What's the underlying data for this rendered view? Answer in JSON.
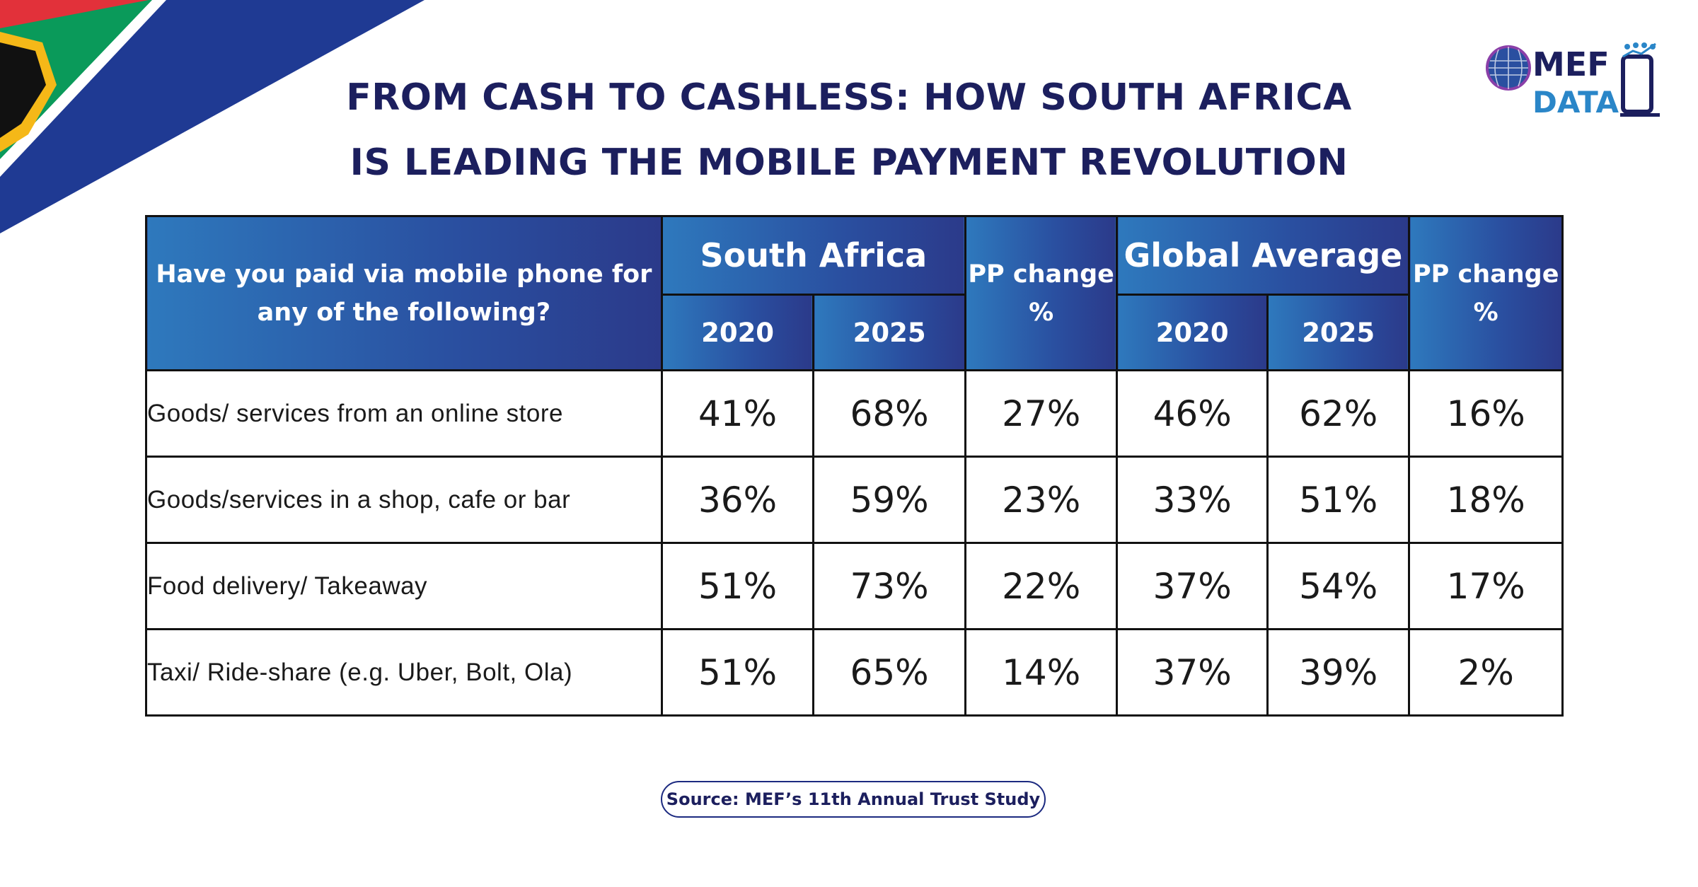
{
  "header": {
    "title_line1": "FROM CASH TO CASHLESS: HOW SOUTH AFRICA",
    "title_line2": "IS LEADING THE MOBILE PAYMENT REVOLUTION"
  },
  "logo": {
    "word_top": "MEF",
    "word_bottom": "DATA",
    "icon": "globe-phone-logo"
  },
  "colors": {
    "navy": "#1c1f5e",
    "header_blue": "#2e79bd",
    "header_indigo": "#2b3a8a",
    "flag_green": "#0a9a5a",
    "flag_blue": "#1f3a93",
    "flag_red": "#e2313a",
    "flag_gold": "#f5b818"
  },
  "table": {
    "question": "Have you paid via mobile phone for any of the following?",
    "groups": {
      "south_africa": "South Africa",
      "global": "Global Average"
    },
    "pp_label": "PP change %",
    "years": {
      "y1": "2020",
      "y2": "2025"
    },
    "rows": [
      {
        "label": "Goods/ services from an online store",
        "sa_2020": "41%",
        "sa_2025": "68%",
        "sa_pp": "27%",
        "gl_2020": "46%",
        "gl_2025": "62%",
        "gl_pp": "16%"
      },
      {
        "label": "Goods/services in a shop, cafe or bar",
        "sa_2020": "36%",
        "sa_2025": "59%",
        "sa_pp": "23%",
        "gl_2020": "33%",
        "gl_2025": "51%",
        "gl_pp": "18%"
      },
      {
        "label": "Food delivery/ Takeaway",
        "sa_2020": "51%",
        "sa_2025": "73%",
        "sa_pp": "22%",
        "gl_2020": "37%",
        "gl_2025": "54%",
        "gl_pp": "17%"
      },
      {
        "label": "Taxi/ Ride-share (e.g. Uber, Bolt, Ola)",
        "sa_2020": "51%",
        "sa_2025": "65%",
        "sa_pp": "14%",
        "gl_2020": "37%",
        "gl_2025": "39%",
        "gl_pp": "2%"
      }
    ]
  },
  "source": "Source: MEF’s 11th Annual Trust Study"
}
